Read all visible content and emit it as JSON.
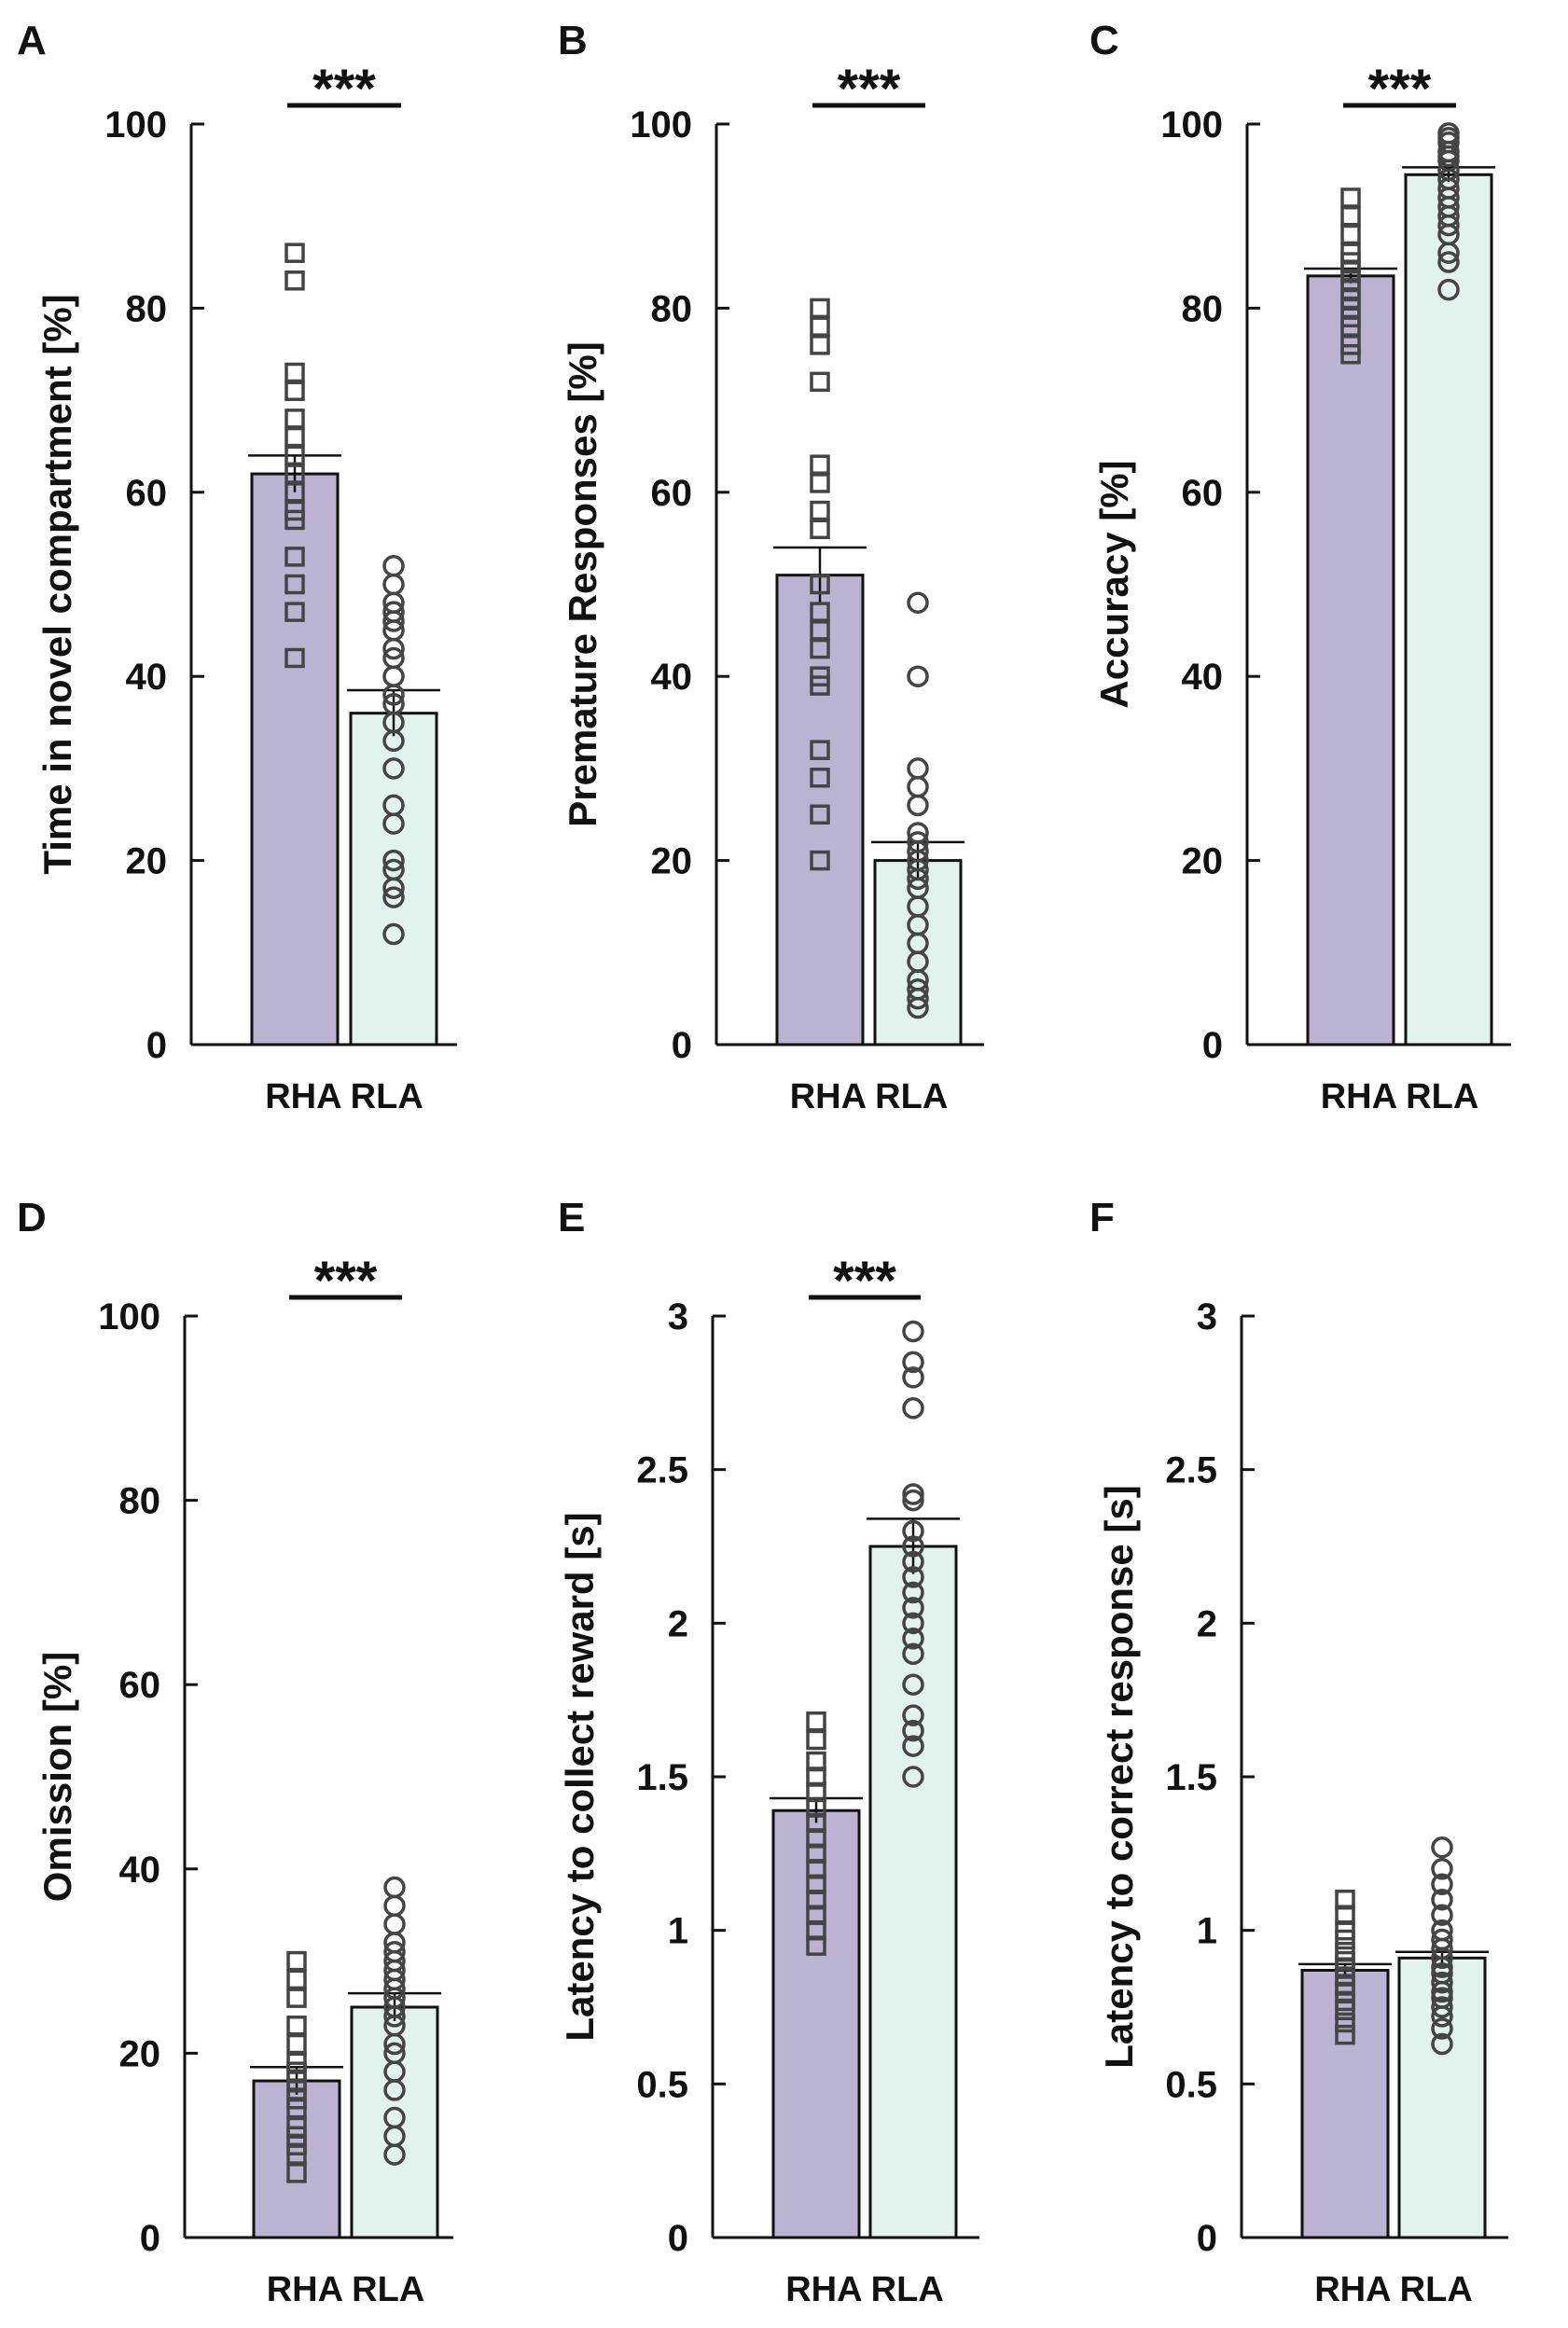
{
  "colors": {
    "rha": "#bcb3d3",
    "rla": "#e2f2ee",
    "axis": "#111111",
    "marker": "#444444"
  },
  "chart_data": [
    {
      "panel": "A",
      "type": "bar",
      "ylabel": "Time in novel compartment [%]",
      "ylim": [
        0,
        100
      ],
      "yticks": [
        0,
        20,
        40,
        60,
        80,
        100
      ],
      "ytick_labels": [
        "0",
        "20",
        "40",
        "60",
        "80",
        "100"
      ],
      "categories": [
        "RHA",
        "RLA"
      ],
      "xlabel_text": "RHA RLA",
      "significance": "***",
      "series": [
        {
          "name": "RHA",
          "marker": "square",
          "mean": 62,
          "sem": 2,
          "points": [
            86,
            83,
            73,
            71,
            68,
            66,
            64,
            62,
            60,
            58,
            57,
            53,
            50,
            47,
            42
          ]
        },
        {
          "name": "RLA",
          "marker": "circle",
          "mean": 36,
          "sem": 2.5,
          "points": [
            52,
            50,
            48,
            47,
            46,
            45,
            43,
            42,
            40,
            38,
            37,
            35,
            33,
            30,
            26,
            24,
            20,
            19,
            17,
            16,
            12
          ]
        }
      ]
    },
    {
      "panel": "B",
      "type": "bar",
      "ylabel": "Premature Responses [%]",
      "ylim": [
        0,
        100
      ],
      "yticks": [
        0,
        20,
        40,
        60,
        80,
        100
      ],
      "ytick_labels": [
        "0",
        "20",
        "40",
        "60",
        "80",
        "100"
      ],
      "categories": [
        "RHA",
        "RLA"
      ],
      "xlabel_text": "RHA RLA",
      "significance": "***",
      "series": [
        {
          "name": "RHA",
          "marker": "square",
          "mean": 51,
          "sem": 3,
          "points": [
            80,
            78,
            76,
            72,
            63,
            61,
            58,
            56,
            50,
            47,
            45,
            43,
            40,
            39,
            32,
            29,
            25,
            20
          ]
        },
        {
          "name": "RLA",
          "marker": "circle",
          "mean": 20,
          "sem": 2,
          "points": [
            48,
            40,
            30,
            28,
            26,
            23,
            22,
            21,
            20,
            19,
            18,
            17,
            15,
            13,
            11,
            9,
            7,
            6,
            5,
            4
          ]
        }
      ]
    },
    {
      "panel": "C",
      "type": "bar",
      "ylabel": "Accuracy [%]",
      "ylim": [
        0,
        100
      ],
      "yticks": [
        0,
        20,
        40,
        60,
        80,
        100
      ],
      "ytick_labels": [
        "0",
        "20",
        "40",
        "60",
        "80",
        "100"
      ],
      "categories": [
        "RHA",
        "RLA"
      ],
      "xlabel_text": "RHA RLA",
      "significance": "***",
      "series": [
        {
          "name": "RHA",
          "marker": "square",
          "mean": 83.5,
          "sem": 0.8,
          "points": [
            92,
            90,
            88,
            86,
            85,
            84,
            83,
            82,
            81,
            80,
            79,
            78,
            76,
            75
          ]
        },
        {
          "name": "RLA",
          "marker": "circle",
          "mean": 94.5,
          "sem": 0.8,
          "points": [
            99,
            98.5,
            98,
            97,
            96.5,
            96,
            95,
            94,
            93,
            92,
            91,
            90,
            89,
            88,
            86,
            85,
            82
          ]
        }
      ]
    },
    {
      "panel": "D",
      "type": "bar",
      "ylabel": "Omission [%]",
      "ylim": [
        0,
        100
      ],
      "yticks": [
        0,
        20,
        40,
        60,
        80,
        100
      ],
      "ytick_labels": [
        "0",
        "20",
        "40",
        "60",
        "80",
        "100"
      ],
      "categories": [
        "RHA",
        "RLA"
      ],
      "xlabel_text": "RHA RLA",
      "significance": "***",
      "series": [
        {
          "name": "RHA",
          "marker": "square",
          "mean": 17,
          "sem": 1.5,
          "points": [
            30,
            28,
            26,
            23,
            21,
            19,
            18,
            17,
            16,
            15,
            14,
            12,
            11,
            10,
            9,
            7
          ]
        },
        {
          "name": "RLA",
          "marker": "circle",
          "mean": 25,
          "sem": 1.5,
          "points": [
            38,
            36,
            34,
            32,
            31,
            30,
            29,
            28,
            27,
            26,
            25,
            24,
            23,
            21,
            20,
            18,
            16,
            13,
            11,
            9
          ]
        }
      ]
    },
    {
      "panel": "E",
      "type": "bar",
      "ylabel": "Latency to collect reward [s]",
      "ylim": [
        0,
        3
      ],
      "yticks": [
        0,
        0.5,
        1,
        1.5,
        2,
        2.5,
        3
      ],
      "ytick_labels": [
        "0",
        "0.5",
        "1",
        "1.5",
        "2",
        "2.5",
        "3"
      ],
      "categories": [
        "RHA",
        "RLA"
      ],
      "xlabel_text": "RHA RLA",
      "significance": "***",
      "series": [
        {
          "name": "RHA",
          "marker": "square",
          "mean": 1.39,
          "sem": 0.04,
          "points": [
            1.68,
            1.62,
            1.55,
            1.5,
            1.45,
            1.4,
            1.35,
            1.3,
            1.25,
            1.2,
            1.15,
            1.1,
            1.05,
            1.0,
            0.95
          ]
        },
        {
          "name": "RLA",
          "marker": "circle",
          "mean": 2.25,
          "sem": 0.09,
          "points": [
            2.95,
            2.85,
            2.8,
            2.7,
            2.42,
            2.4,
            2.3,
            2.25,
            2.2,
            2.15,
            2.1,
            2.05,
            2.0,
            1.95,
            1.9,
            1.8,
            1.7,
            1.65,
            1.6,
            1.5
          ]
        }
      ]
    },
    {
      "panel": "F",
      "type": "bar",
      "ylabel": "Latency to correct response [s]",
      "ylim": [
        0,
        3
      ],
      "yticks": [
        0,
        0.5,
        1,
        1.5,
        2,
        2.5,
        3
      ],
      "ytick_labels": [
        "0",
        "0.5",
        "1",
        "1.5",
        "2",
        "2.5",
        "3"
      ],
      "categories": [
        "RHA",
        "RLA"
      ],
      "xlabel_text": "RHA RLA",
      "significance": "",
      "series": [
        {
          "name": "RHA",
          "marker": "square",
          "mean": 0.87,
          "sem": 0.02,
          "points": [
            1.1,
            1.05,
            1.0,
            0.97,
            0.93,
            0.9,
            0.88,
            0.85,
            0.82,
            0.8,
            0.77,
            0.74,
            0.7,
            0.66
          ]
        },
        {
          "name": "RLA",
          "marker": "circle",
          "mean": 0.91,
          "sem": 0.02,
          "points": [
            1.27,
            1.2,
            1.15,
            1.1,
            1.05,
            1.0,
            0.97,
            0.94,
            0.91,
            0.88,
            0.86,
            0.83,
            0.8,
            0.78,
            0.75,
            0.72,
            0.68,
            0.63
          ]
        }
      ]
    }
  ]
}
